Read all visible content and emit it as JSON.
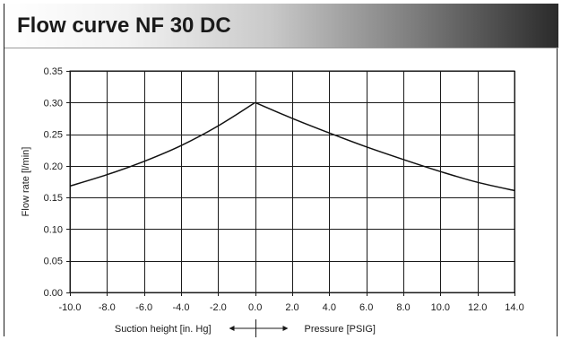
{
  "header": {
    "title": "Flow curve NF 30 DC"
  },
  "chart_data": {
    "type": "line",
    "title": "Flow curve NF 30 DC",
    "ylabel": "Flow rate [l/min]",
    "xlabel_left": "Suction height [in. Hg]",
    "xlabel_right": "Pressure [PSIG]",
    "xlim": [
      -10,
      14
    ],
    "ylim": [
      0,
      0.35
    ],
    "x_ticks": [
      "-10.0",
      "-8.0",
      "-6.0",
      "-4.0",
      "-2.0",
      "0.0",
      "2.0",
      "4.0",
      "6.0",
      "8.0",
      "10.0",
      "12.0",
      "14.0"
    ],
    "y_ticks": [
      "0.00",
      "0.05",
      "0.10",
      "0.15",
      "0.20",
      "0.25",
      "0.30",
      "0.35"
    ],
    "x_tick_values": [
      -10,
      -8,
      -6,
      -4,
      -2,
      0,
      2,
      4,
      6,
      8,
      10,
      12,
      14
    ],
    "y_tick_values": [
      0,
      0.05,
      0.1,
      0.15,
      0.2,
      0.25,
      0.3,
      0.35
    ],
    "grid": true,
    "series": [
      {
        "x": [
          -10,
          -8,
          -6,
          -4,
          -2,
          0,
          2,
          4,
          6,
          8,
          10,
          12,
          14
        ],
        "y": [
          0.168,
          0.186,
          0.207,
          0.232,
          0.263,
          0.3,
          0.275,
          0.252,
          0.23,
          0.21,
          0.191,
          0.174,
          0.161
        ]
      }
    ],
    "colors": {
      "line": "#111111",
      "grid": "#1a1a1a"
    }
  }
}
